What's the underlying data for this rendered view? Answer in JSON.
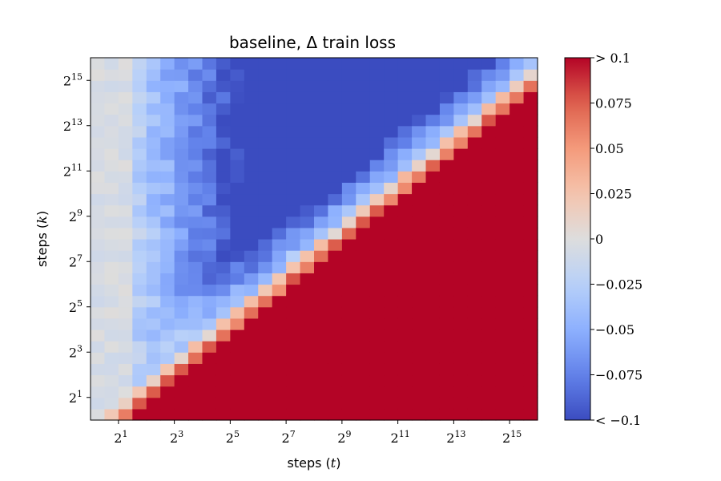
{
  "chart_data": {
    "type": "heatmap",
    "title": "baseline, Δ train loss",
    "xlabel": "steps (t)",
    "ylabel": "steps (k)",
    "x_scale": "log2",
    "y_scale": "log2",
    "x_range_log2": [
      0,
      16
    ],
    "y_range_log2": [
      0,
      16
    ],
    "grid": false,
    "x_ticks": [
      {
        "value": 1,
        "label": "2",
        "sup": "1"
      },
      {
        "value": 3,
        "label": "2",
        "sup": "3"
      },
      {
        "value": 5,
        "label": "2",
        "sup": "5"
      },
      {
        "value": 7,
        "label": "2",
        "sup": "7"
      },
      {
        "value": 9,
        "label": "2",
        "sup": "9"
      },
      {
        "value": 11,
        "label": "2",
        "sup": "11"
      },
      {
        "value": 13,
        "label": "2",
        "sup": "13"
      },
      {
        "value": 15,
        "label": "2",
        "sup": "15"
      }
    ],
    "y_ticks": [
      {
        "value": 1,
        "label": "2",
        "sup": "1"
      },
      {
        "value": 3,
        "label": "2",
        "sup": "3"
      },
      {
        "value": 5,
        "label": "2",
        "sup": "5"
      },
      {
        "value": 7,
        "label": "2",
        "sup": "7"
      },
      {
        "value": 9,
        "label": "2",
        "sup": "9"
      },
      {
        "value": 11,
        "label": "2",
        "sup": "11"
      },
      {
        "value": 13,
        "label": "2",
        "sup": "13"
      },
      {
        "value": 15,
        "label": "2",
        "sup": "15"
      }
    ],
    "colorbar": {
      "colormap": "coolwarm",
      "vmin": -0.1,
      "vmax": 0.1,
      "ticks": [
        {
          "value": 0.1,
          "label": "> 0.1"
        },
        {
          "value": 0.075,
          "label": "0.075"
        },
        {
          "value": 0.05,
          "label": "0.05"
        },
        {
          "value": 0.025,
          "label": "0.025"
        },
        {
          "value": 0,
          "label": "0"
        },
        {
          "value": -0.025,
          "label": "−0.025"
        },
        {
          "value": -0.05,
          "label": "−0.05"
        },
        {
          "value": -0.075,
          "label": "−0.075"
        },
        {
          "value": -0.1,
          "label": "< −0.1"
        }
      ]
    },
    "grid_size": [
      32,
      32
    ],
    "cell_log2_width": 0.5,
    "values": "32x32 matrix of Δ train loss over log2(t) x log2(k); regime: near 0 at small t, strongly negative (≤ −0.1) in a band left of the diagonal, strongly positive (≥ 0.1) in the lower-right triangle where t ≳ 2·k"
  }
}
